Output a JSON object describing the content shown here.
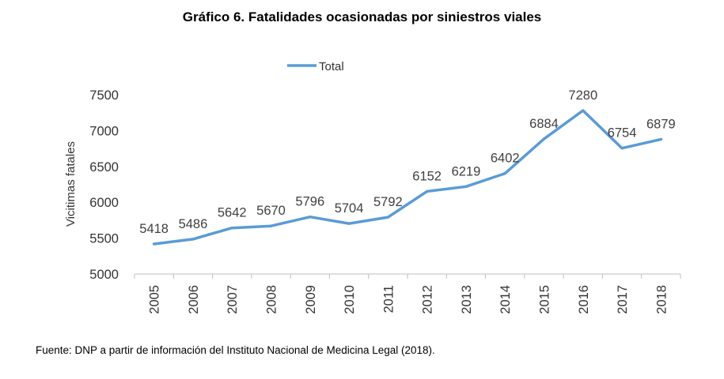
{
  "title": "Gráfico 6. Fatalidades ocasionadas por siniestros viales",
  "source": "Fuente: DNP a partir de información del Instituto Nacional de Medicina Legal (2018).",
  "chart_data": {
    "type": "line",
    "categories": [
      "2005",
      "2006",
      "2007",
      "2008",
      "2009",
      "2010",
      "2011",
      "2012",
      "2013",
      "2014",
      "2015",
      "2016",
      "2017",
      "2018"
    ],
    "series": [
      {
        "name": "Total",
        "values": [
          5418,
          5486,
          5642,
          5670,
          5796,
          5704,
          5792,
          6152,
          6219,
          6402,
          6884,
          7280,
          6754,
          6879
        ],
        "color": "#5b9bd5"
      }
    ],
    "ylabel": "Vicitimas fatales",
    "xlabel": "",
    "ylim": [
      5000,
      7500
    ],
    "yticks": [
      5000,
      5500,
      6000,
      6500,
      7000,
      7500
    ],
    "grid": false,
    "legend": "top-center",
    "data_labels": true,
    "x_tick_rotation": "vertical"
  }
}
